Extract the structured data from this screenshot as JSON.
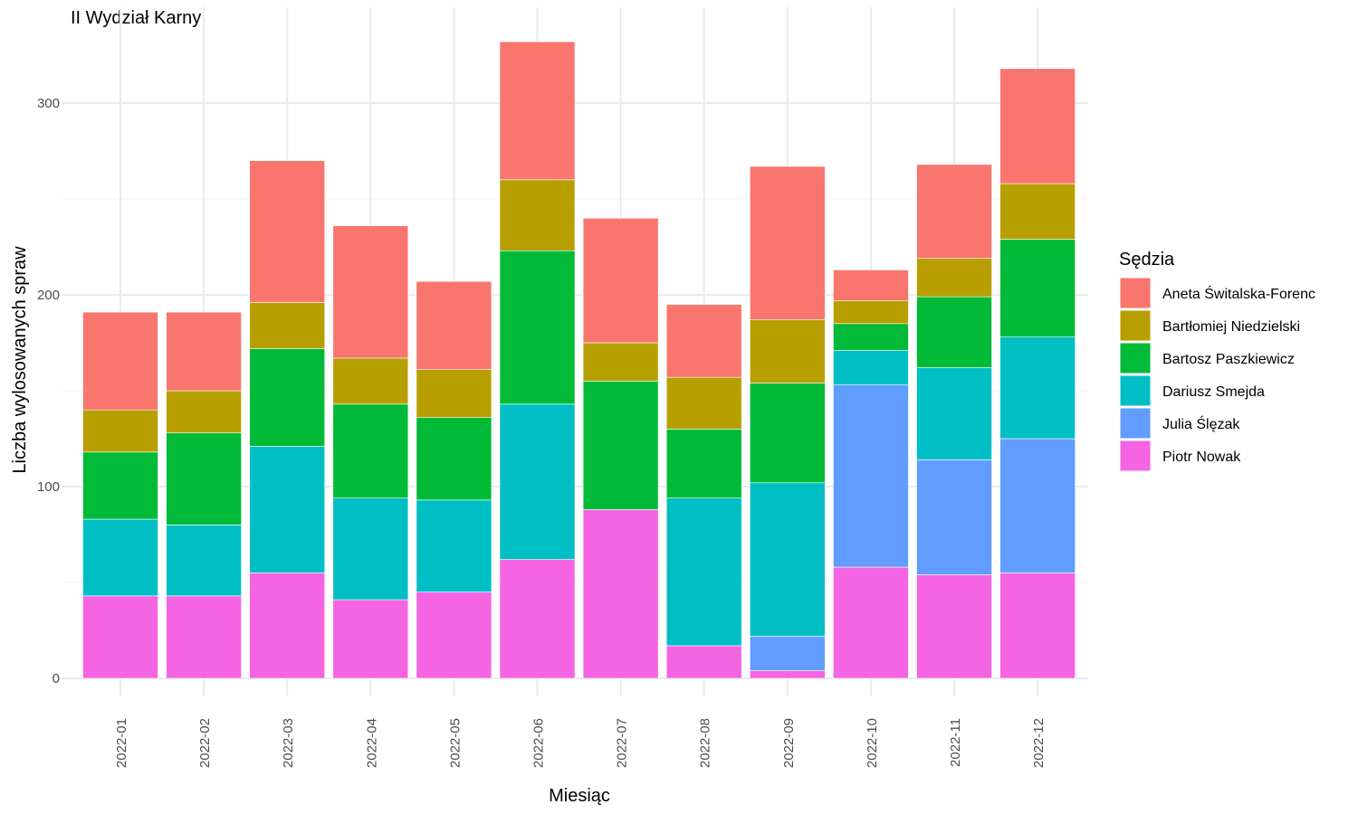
{
  "chart_data": {
    "type": "bar",
    "stacked": true,
    "title": "II Wydział Karny",
    "xlabel": "Miesiąc",
    "ylabel": "Liczba wylosowanych spraw",
    "ylim": [
      0,
      332
    ],
    "yticks": [
      0,
      100,
      200,
      300
    ],
    "grid": true,
    "legend_title": "Sędzia",
    "legend_position": "right",
    "categories": [
      "2022-01",
      "2022-02",
      "2022-03",
      "2022-04",
      "2022-05",
      "2022-06",
      "2022-07",
      "2022-08",
      "2022-09",
      "2022-10",
      "2022-11",
      "2022-12"
    ],
    "series": [
      {
        "name": "Aneta Świtalska-Forenc",
        "color": "#F8766D",
        "values": [
          51,
          41,
          74,
          69,
          46,
          72,
          65,
          38,
          80,
          16,
          49,
          60
        ]
      },
      {
        "name": "Bartłomiej Niedzielski",
        "color": "#B79F00",
        "values": [
          22,
          22,
          24,
          24,
          25,
          37,
          20,
          27,
          33,
          12,
          20,
          29
        ]
      },
      {
        "name": "Bartosz Paszkiewicz",
        "color": "#00BA38",
        "values": [
          35,
          48,
          51,
          49,
          43,
          80,
          67,
          36,
          52,
          14,
          37,
          51
        ]
      },
      {
        "name": "Dariusz Smejda",
        "color": "#00BFC4",
        "values": [
          40,
          37,
          66,
          53,
          48,
          81,
          0,
          77,
          80,
          18,
          48,
          53
        ]
      },
      {
        "name": "Julia Ślęzak",
        "color": "#619CFF",
        "values": [
          0,
          0,
          0,
          0,
          0,
          0,
          0,
          0,
          18,
          95,
          60,
          70
        ]
      },
      {
        "name": "Piotr Nowak",
        "color": "#F564E3",
        "values": [
          43,
          43,
          55,
          41,
          45,
          62,
          88,
          17,
          4,
          58,
          54,
          55
        ]
      }
    ]
  }
}
